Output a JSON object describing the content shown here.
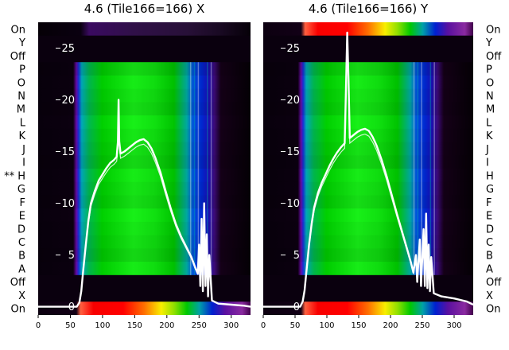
{
  "chart_data": {
    "type": "heatmap",
    "x_range": [
      0,
      330
    ],
    "x_ticks": [
      "0",
      "50",
      "100",
      "150",
      "200",
      "250",
      "300"
    ],
    "overlay_y_range": [
      -0.8,
      27.5
    ],
    "overlay_y_ticks": [
      {
        "value": 0,
        "label": "0"
      },
      {
        "value": 5,
        "label": "5"
      },
      {
        "value": 10,
        "label": "10"
      },
      {
        "value": 15,
        "label": "15"
      },
      {
        "value": 20,
        "label": "20"
      },
      {
        "value": 25,
        "label": "25"
      }
    ],
    "row_labels_left": [
      "On",
      "Y",
      "Off",
      "P",
      "O",
      "N",
      "M",
      "L",
      "K",
      "J",
      "I",
      "** H",
      "G",
      "F",
      "E",
      "D",
      "C",
      "B",
      "A",
      "Off",
      "X",
      "On"
    ],
    "row_labels_right": [
      "On",
      "Y",
      "Off",
      "P",
      "O",
      "N",
      "M",
      "L",
      "K",
      "J",
      "I",
      "H",
      "G",
      "F",
      "E",
      "D",
      "C",
      "B",
      "A",
      "Off",
      "X",
      "On"
    ],
    "colormap": "spectral",
    "panels": [
      {
        "title": "4.6 (Tile166=166) X",
        "band_on_top": "dim",
        "band_on_bottom": "bright",
        "trace": [
          [
            0,
            0
          ],
          [
            40,
            0
          ],
          [
            60,
            0
          ],
          [
            64,
            0.4
          ],
          [
            67,
            1.5
          ],
          [
            70,
            3.5
          ],
          [
            74,
            6
          ],
          [
            78,
            8.3
          ],
          [
            82,
            10
          ],
          [
            88,
            11.2
          ],
          [
            94,
            12.2
          ],
          [
            100,
            12.8
          ],
          [
            106,
            13.4
          ],
          [
            112,
            13.9
          ],
          [
            118,
            14.2
          ],
          [
            122,
            14.5
          ],
          [
            124,
            16
          ],
          [
            125,
            20
          ],
          [
            126,
            16
          ],
          [
            128,
            14.8
          ],
          [
            134,
            15
          ],
          [
            140,
            15.3
          ],
          [
            146,
            15.6
          ],
          [
            152,
            15.9
          ],
          [
            158,
            16.1
          ],
          [
            164,
            16.2
          ],
          [
            170,
            15.9
          ],
          [
            176,
            15.3
          ],
          [
            182,
            14.4
          ],
          [
            190,
            13
          ],
          [
            198,
            11.2
          ],
          [
            206,
            9.5
          ],
          [
            214,
            8
          ],
          [
            222,
            6.8
          ],
          [
            230,
            5.8
          ],
          [
            238,
            4.8
          ],
          [
            244,
            3.8
          ],
          [
            248,
            3.2
          ],
          [
            250,
            6
          ],
          [
            252,
            2
          ],
          [
            254,
            8.5
          ],
          [
            256,
            1.5
          ],
          [
            258,
            10
          ],
          [
            260,
            2
          ],
          [
            262,
            7
          ],
          [
            264,
            1
          ],
          [
            266,
            5
          ],
          [
            270,
            0.6
          ],
          [
            280,
            0.3
          ],
          [
            300,
            0.2
          ],
          [
            320,
            0.1
          ],
          [
            330,
            0
          ]
        ]
      },
      {
        "title": "4.6 (Tile166=166) Y",
        "band_on_top": "bright",
        "band_on_bottom": "bright",
        "trace": [
          [
            0,
            0
          ],
          [
            40,
            0
          ],
          [
            58,
            0
          ],
          [
            62,
            0.5
          ],
          [
            65,
            1.6
          ],
          [
            68,
            3.5
          ],
          [
            72,
            6
          ],
          [
            76,
            8
          ],
          [
            80,
            9.6
          ],
          [
            86,
            11
          ],
          [
            92,
            12
          ],
          [
            98,
            12.8
          ],
          [
            104,
            13.6
          ],
          [
            110,
            14.3
          ],
          [
            116,
            14.9
          ],
          [
            122,
            15.4
          ],
          [
            128,
            15.8
          ],
          [
            130,
            21
          ],
          [
            132,
            26.5
          ],
          [
            134,
            22
          ],
          [
            136,
            16.3
          ],
          [
            142,
            16.6
          ],
          [
            148,
            16.9
          ],
          [
            154,
            17.1
          ],
          [
            160,
            17.2
          ],
          [
            166,
            17
          ],
          [
            172,
            16.4
          ],
          [
            178,
            15.6
          ],
          [
            186,
            14.2
          ],
          [
            194,
            12.6
          ],
          [
            202,
            10.8
          ],
          [
            210,
            9
          ],
          [
            218,
            7.3
          ],
          [
            226,
            5.6
          ],
          [
            232,
            4.3
          ],
          [
            236,
            3.3
          ],
          [
            240,
            5
          ],
          [
            242,
            2.4
          ],
          [
            246,
            6.5
          ],
          [
            248,
            2
          ],
          [
            252,
            7.5
          ],
          [
            254,
            2
          ],
          [
            256,
            9
          ],
          [
            258,
            1.8
          ],
          [
            260,
            6
          ],
          [
            262,
            1.5
          ],
          [
            264,
            4.8
          ],
          [
            268,
            1.3
          ],
          [
            280,
            1
          ],
          [
            300,
            0.8
          ],
          [
            320,
            0.5
          ],
          [
            330,
            0.2
          ]
        ]
      }
    ]
  }
}
